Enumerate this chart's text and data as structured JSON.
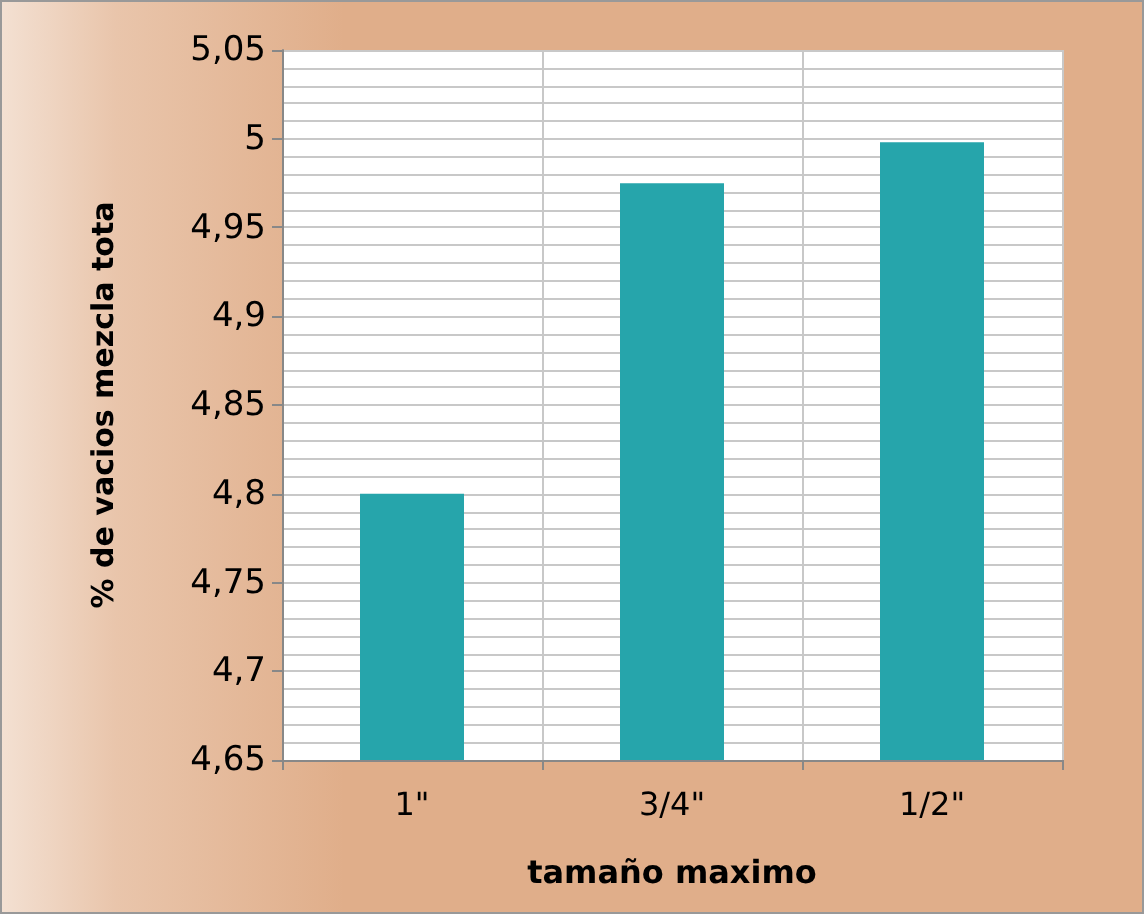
{
  "chart_data": {
    "type": "bar",
    "xlabel": "tamaño maximo",
    "ylabel": "% de vacios mezcla tota",
    "categories": [
      "1\"",
      "3/4\"",
      "1/2\""
    ],
    "values": [
      4.8,
      4.975,
      4.998
    ],
    "color": "#26a5ab",
    "ylim": [
      4.65,
      5.05
    ],
    "yticks": [
      {
        "value": 4.65,
        "label": "4,65"
      },
      {
        "value": 4.7,
        "label": "4,7"
      },
      {
        "value": 4.75,
        "label": "4,75"
      },
      {
        "value": 4.8,
        "label": "4,8"
      },
      {
        "value": 4.85,
        "label": "4,85"
      },
      {
        "value": 4.9,
        "label": "4,9"
      },
      {
        "value": 4.95,
        "label": "4,95"
      },
      5,
      {
        "value": 5.05,
        "label": "5,05"
      }
    ],
    "grid": true
  }
}
